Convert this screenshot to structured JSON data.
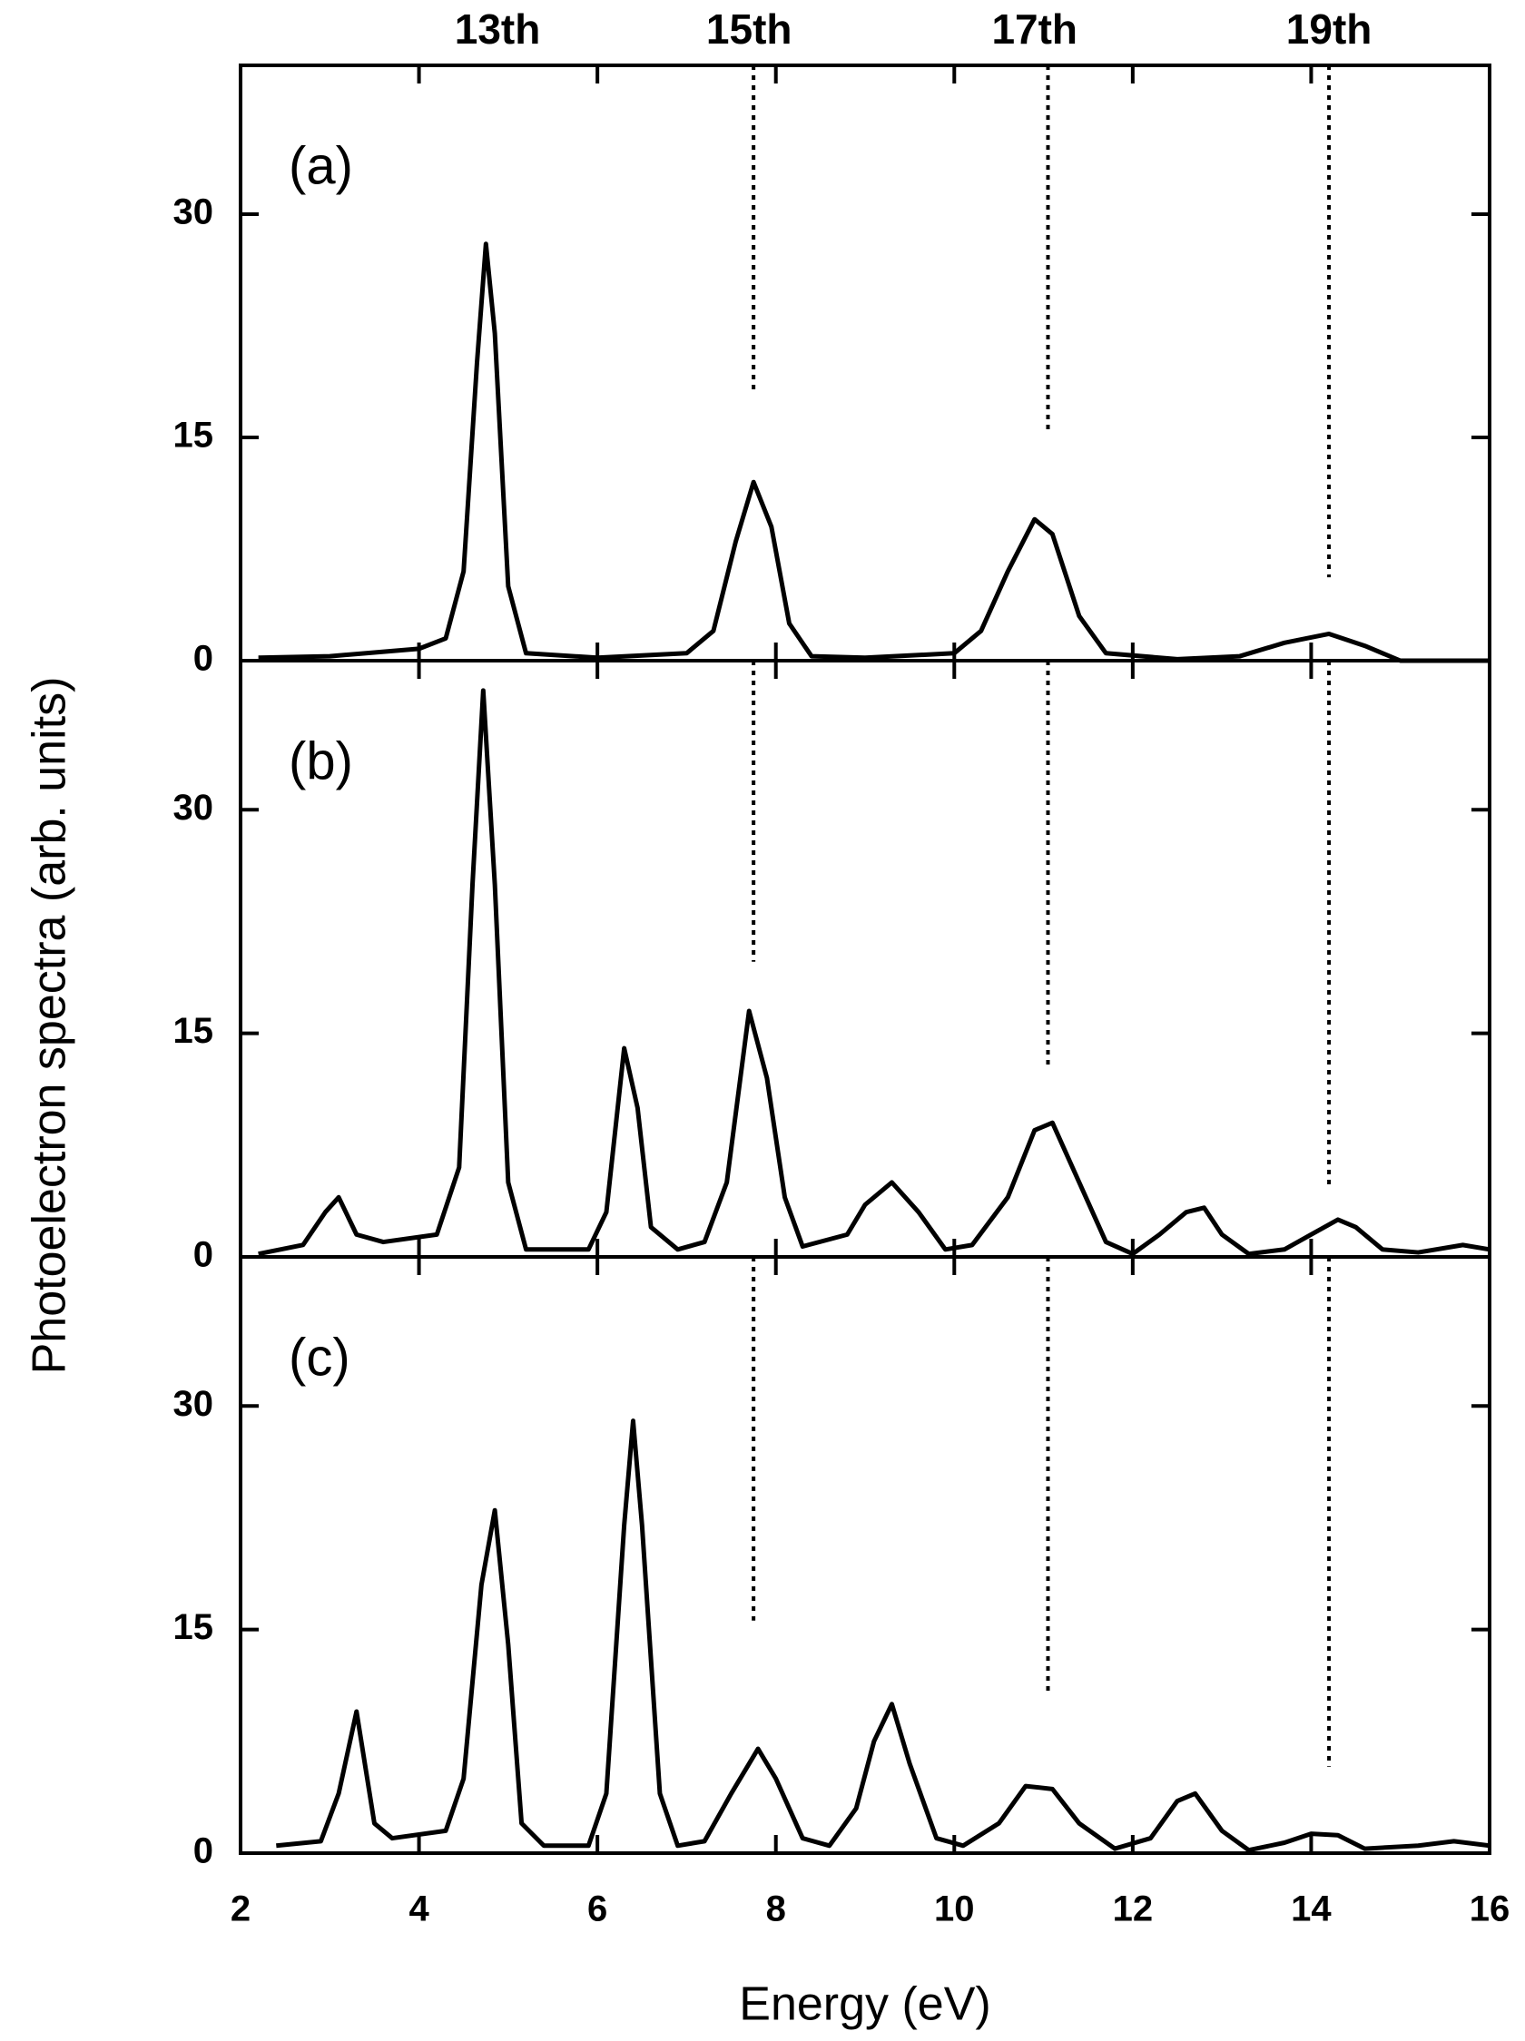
{
  "figure": {
    "xlabel": "Energy (eV)",
    "ylabel": "Photoelectron spectra (arb. units)",
    "harmonics": [
      {
        "label": "13th",
        "x": 4.88
      },
      {
        "label": "15th",
        "x": 7.7
      },
      {
        "label": "17th",
        "x": 10.9
      },
      {
        "label": "19th",
        "x": 14.2
      }
    ]
  },
  "chart_data": [
    {
      "type": "line",
      "label": "(a)",
      "xlim": [
        2,
        16
      ],
      "ylim": [
        0,
        40
      ],
      "xticks": [
        2,
        4,
        6,
        8,
        10,
        12,
        14,
        16
      ],
      "yticks": [
        0,
        15,
        30
      ],
      "xtick_labels": false,
      "guides": [
        {
          "x": 7.75,
          "y": 18
        },
        {
          "x": 11.05,
          "y": 15.4
        },
        {
          "x": 14.2,
          "y": 5.6
        }
      ],
      "x": [
        2.2,
        3,
        4,
        4.3,
        4.5,
        4.65,
        4.75,
        4.85,
        5.0,
        5.2,
        6,
        7,
        7.3,
        7.55,
        7.75,
        7.95,
        8.15,
        8.4,
        9,
        10,
        10.3,
        10.6,
        10.9,
        11.1,
        11.4,
        11.7,
        12.5,
        13.2,
        13.7,
        14.2,
        14.6,
        15,
        16
      ],
      "series": [
        {
          "color": "#000000",
          "values": [
            0.2,
            0.3,
            0.8,
            1.5,
            6,
            20,
            28,
            22,
            5,
            0.5,
            0.2,
            0.5,
            2,
            8,
            12,
            9,
            2.5,
            0.3,
            0.2,
            0.5,
            2,
            6,
            9.5,
            8.5,
            3,
            0.5,
            0.1,
            0.3,
            1.2,
            1.8,
            1,
            0,
            0
          ]
        }
      ]
    },
    {
      "type": "line",
      "label": "(b)",
      "xlim": [
        2,
        16
      ],
      "ylim": [
        0,
        40
      ],
      "xticks": [
        2,
        4,
        6,
        8,
        10,
        12,
        14,
        16
      ],
      "yticks": [
        0,
        15,
        30
      ],
      "xtick_labels": false,
      "guides": [
        {
          "x": 7.75,
          "y": 19.8
        },
        {
          "x": 11.05,
          "y": 12.7
        },
        {
          "x": 14.2,
          "y": 4.6
        }
      ],
      "x": [
        2.2,
        2.7,
        2.95,
        3.1,
        3.3,
        3.6,
        4.2,
        4.45,
        4.6,
        4.72,
        4.85,
        5.0,
        5.2,
        5.9,
        6.1,
        6.3,
        6.45,
        6.6,
        6.9,
        7.2,
        7.45,
        7.7,
        7.9,
        8.1,
        8.3,
        8.8,
        9.0,
        9.3,
        9.6,
        9.9,
        10.2,
        10.6,
        10.9,
        11.1,
        11.4,
        11.7,
        12.0,
        12.3,
        12.6,
        12.8,
        13.0,
        13.3,
        13.7,
        14.0,
        14.3,
        14.5,
        14.8,
        15.2,
        15.7,
        16
      ],
      "series": [
        {
          "color": "#000000",
          "values": [
            0.2,
            0.8,
            3,
            4,
            1.5,
            1,
            1.5,
            6,
            25,
            38,
            25,
            5,
            0.5,
            0.5,
            3,
            14,
            10,
            2,
            0.5,
            1,
            5,
            16.5,
            12,
            4,
            0.7,
            1.5,
            3.5,
            5,
            3,
            0.5,
            0.8,
            4,
            8.5,
            9,
            5,
            1,
            0.2,
            1.5,
            3,
            3.3,
            1.5,
            0.2,
            0.5,
            1.5,
            2.5,
            2,
            0.5,
            0.3,
            0.8,
            0.5
          ]
        }
      ]
    },
    {
      "type": "line",
      "label": "(c)",
      "xlim": [
        2,
        16
      ],
      "ylim": [
        0,
        40
      ],
      "xticks": [
        2,
        4,
        6,
        8,
        10,
        12,
        14,
        16
      ],
      "yticks": [
        0,
        15,
        30
      ],
      "xtick_labels": true,
      "guides": [
        {
          "x": 7.75,
          "y": 15.6
        },
        {
          "x": 11.05,
          "y": 10.7
        },
        {
          "x": 14.2,
          "y": 5.8
        }
      ],
      "x": [
        2.4,
        2.9,
        3.1,
        3.3,
        3.5,
        3.7,
        4.3,
        4.5,
        4.7,
        4.85,
        5.0,
        5.15,
        5.4,
        5.9,
        6.1,
        6.3,
        6.4,
        6.5,
        6.7,
        6.9,
        7.2,
        7.5,
        7.8,
        8.0,
        8.3,
        8.6,
        8.9,
        9.1,
        9.3,
        9.5,
        9.8,
        10.1,
        10.5,
        10.8,
        11.1,
        11.4,
        11.8,
        12.2,
        12.5,
        12.7,
        13.0,
        13.3,
        13.7,
        14.0,
        14.3,
        14.6,
        15.2,
        15.6,
        16
      ],
      "series": [
        {
          "color": "#000000",
          "values": [
            0.5,
            0.8,
            4,
            9.5,
            2,
            1,
            1.5,
            5,
            18,
            23,
            14,
            2,
            0.5,
            0.5,
            4,
            22,
            29,
            22,
            4,
            0.5,
            0.8,
            4,
            7,
            5,
            1,
            0.5,
            3,
            7.5,
            10,
            6,
            1,
            0.5,
            2,
            4.5,
            4.3,
            2,
            0.3,
            1,
            3.5,
            4,
            1.5,
            0.2,
            0.7,
            1.3,
            1.2,
            0.3,
            0.5,
            0.8,
            0.5
          ]
        }
      ]
    }
  ]
}
